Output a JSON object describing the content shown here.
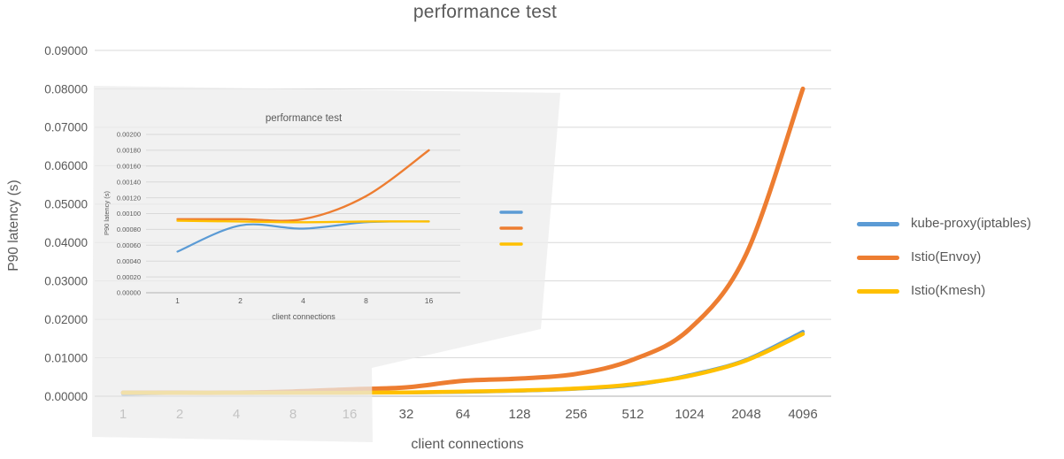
{
  "page_title": "performance test",
  "chart_data": [
    {
      "id": "main",
      "type": "line",
      "title": "performance test",
      "xlabel": "client connections",
      "ylabel": "P90 latency (s)",
      "categories": [
        "1",
        "2",
        "4",
        "8",
        "16",
        "32",
        "64",
        "128",
        "256",
        "512",
        "1024",
        "2048",
        "4096"
      ],
      "ylim": [
        0,
        0.09
      ],
      "ytick_step": 0.01,
      "ytick_labels": [
        "0.00000",
        "0.01000",
        "0.02000",
        "0.03000",
        "0.04000",
        "0.05000",
        "0.06000",
        "0.07000",
        "0.08000",
        "0.09000"
      ],
      "grid": true,
      "legend_position": "right",
      "series": [
        {
          "name": "kube-proxy(iptables)",
          "color": "#5B9BD5",
          "values": [
            0.00052,
            0.00085,
            0.00081,
            0.00089,
            0.0009,
            0.00095,
            0.0011,
            0.0014,
            0.0019,
            0.0029,
            0.0055,
            0.0095,
            0.0168
          ]
        },
        {
          "name": "Istio(Envoy)",
          "color": "#ED7D31",
          "values": [
            0.00093,
            0.00093,
            0.00093,
            0.00122,
            0.0018,
            0.0023,
            0.004,
            0.0046,
            0.0058,
            0.0095,
            0.0175,
            0.037,
            0.08
          ]
        },
        {
          "name": "Istio(Kmesh)",
          "color": "#FFC000",
          "values": [
            0.00091,
            0.0009,
            0.00089,
            0.0009,
            0.0009,
            0.001,
            0.0012,
            0.0015,
            0.002,
            0.0031,
            0.0053,
            0.0093,
            0.0162
          ]
        }
      ]
    },
    {
      "id": "inset-zoom",
      "type": "line",
      "title": "performance test",
      "xlabel": "client connections",
      "ylabel": "P90 latency (s)",
      "categories": [
        "1",
        "2",
        "4",
        "8",
        "16"
      ],
      "ylim": [
        0,
        0.002
      ],
      "ytick_step": 0.0002,
      "ytick_labels": [
        "0.00000",
        "0.00020",
        "0.00040",
        "0.00060",
        "0.00080",
        "0.00100",
        "0.00120",
        "0.00140",
        "0.00160",
        "0.00180",
        "0.00200"
      ],
      "grid": true,
      "legend_position": "right",
      "legend_labels_visible": false,
      "series": [
        {
          "name": "kube-proxy(iptables)",
          "color": "#5B9BD5",
          "values": [
            0.00052,
            0.00085,
            0.00081,
            0.00089,
            0.0009
          ]
        },
        {
          "name": "Istio(Envoy)",
          "color": "#ED7D31",
          "values": [
            0.00093,
            0.00093,
            0.00093,
            0.00122,
            0.0018
          ]
        },
        {
          "name": "Istio(Kmesh)",
          "color": "#FFC000",
          "values": [
            0.00091,
            0.0009,
            0.00089,
            0.0009,
            0.0009
          ]
        }
      ]
    }
  ],
  "legend": {
    "items": [
      {
        "label": "kube-proxy(iptables)",
        "color": "#5B9BD5"
      },
      {
        "label": "Istio(Envoy)",
        "color": "#ED7D31"
      },
      {
        "label": "Istio(Kmesh)",
        "color": "#FFC000"
      }
    ]
  },
  "colors": {
    "text": "#595959",
    "gridline": "#D9D9D9",
    "axis_line": "#BFBFBF",
    "overlay_background": "#F1F1F1"
  }
}
